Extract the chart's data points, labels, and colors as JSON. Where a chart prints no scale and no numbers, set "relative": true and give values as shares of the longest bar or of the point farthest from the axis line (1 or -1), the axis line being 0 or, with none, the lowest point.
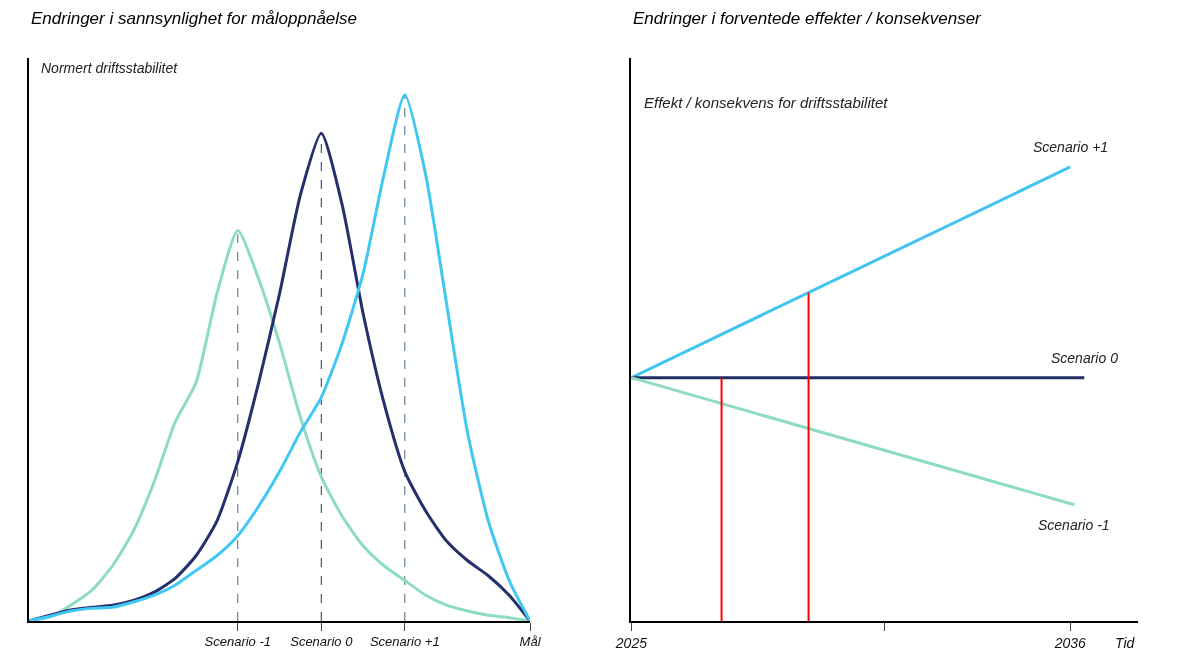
{
  "chart_data": [
    {
      "type": "line",
      "title": "Endringer i sannsynlighet for måloppnåelse",
      "ylabel": "Normert driftsstabilitet",
      "relative": true,
      "grid": false,
      "legend": false,
      "categories": [
        null,
        null,
        null,
        null,
        null,
        null,
        null,
        null,
        null,
        null,
        "Scenario -1",
        null,
        null,
        null,
        "Scenario 0",
        null,
        null,
        null,
        "Scenario +1",
        null,
        null,
        null,
        null,
        null,
        "Mål"
      ],
      "series": [
        {
          "color": "#8edcc0",
          "values": [
            0,
            0.008,
            0.03,
            0.058,
            0.105,
            0.171,
            0.265,
            0.378,
            0.453,
            0.622,
            0.742,
            0.65,
            0.528,
            0.387,
            0.274,
            0.199,
            0.143,
            0.105,
            0.077,
            0.049,
            0.03,
            0.019,
            0.011,
            0.006,
            0
          ]
        },
        {
          "color": "#262f6b",
          "values": [
            0,
            0.011,
            0.021,
            0.026,
            0.03,
            0.039,
            0.055,
            0.081,
            0.124,
            0.19,
            0.303,
            0.453,
            0.622,
            0.81,
            0.927,
            0.791,
            0.585,
            0.415,
            0.284,
            0.209,
            0.152,
            0.115,
            0.086,
            0.049,
            0
          ]
        },
        {
          "color": "#40c8f4",
          "values": [
            0,
            0.009,
            0.019,
            0.024,
            0.026,
            0.036,
            0.049,
            0.068,
            0.096,
            0.124,
            0.162,
            0.218,
            0.284,
            0.359,
            0.425,
            0.528,
            0.66,
            0.848,
            1,
            0.848,
            0.603,
            0.359,
            0.19,
            0.077,
            0
          ]
        }
      ],
      "ref_lines": [
        {
          "axis": "x",
          "value": "Scenario -1",
          "color": "#4a6a80",
          "line_style": "dashed"
        },
        {
          "axis": "x",
          "value": "Scenario 0",
          "color": "#262f6b",
          "line_style": "dashed"
        },
        {
          "axis": "x",
          "value": "Scenario +1",
          "color": "#4a6a80",
          "line_style": "dashed"
        }
      ]
    },
    {
      "type": "line",
      "title": "Endringer i forventede effekter / konsekvenser",
      "ylabel": "Effekt / konsekvens for driftsstabilitet",
      "xlabel": "Tid",
      "relative": true,
      "grid": false,
      "legend": false,
      "xlim": [
        2025,
        2037.7
      ],
      "xticks": [
        2025,
        {
          "value": 2031.35,
          "label": null
        },
        2036
      ],
      "series": [
        {
          "name": "Scenario +1",
          "color": "#40c4f0",
          "x": [
            2025,
            2036
          ],
          "values": [
            0.536,
            1
          ]
        },
        {
          "name": "Scenario 0",
          "color": "#1f2f66",
          "x": [
            2025,
            2036.35
          ],
          "values": [
            0.536,
            0.536
          ]
        },
        {
          "name": "Scenario -1",
          "color": "#8edcc0",
          "x": [
            2025,
            2036.1
          ],
          "values": [
            0.536,
            0.256
          ]
        },
        {
          "color": "#ff0000",
          "x": [
            2027.26,
            2027.26
          ],
          "values": [
            0,
            0.536
          ]
        },
        {
          "color": "#ff0000",
          "x": [
            2029.44,
            2029.44
          ],
          "values": [
            0,
            0.723
          ]
        }
      ]
    }
  ]
}
